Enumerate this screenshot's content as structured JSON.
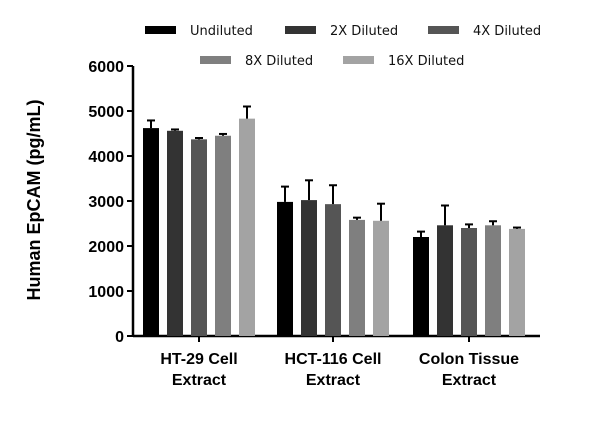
{
  "chart_data": {
    "type": "bar",
    "title": "",
    "ylabel": "Human EpCAM (pg/mL)",
    "xlabel": "",
    "ylim": [
      0,
      6000
    ],
    "yticks": [
      0,
      1000,
      2000,
      3000,
      4000,
      5000,
      6000
    ],
    "grid": false,
    "legend_position": "top",
    "categories": [
      [
        "HT-29 Cell",
        "Extract"
      ],
      [
        "HCT-116 Cell",
        "Extract"
      ],
      [
        "Colon Tissue",
        "Extract"
      ]
    ],
    "series": [
      {
        "name": "Undiluted",
        "color": "#000000",
        "values": [
          4620,
          2980,
          2200
        ],
        "errors": [
          170,
          340,
          120
        ]
      },
      {
        "name": "2X Diluted",
        "color": "#333333",
        "values": [
          4560,
          3020,
          2460
        ],
        "errors": [
          30,
          440,
          440
        ]
      },
      {
        "name": "4X Diluted",
        "color": "#555555",
        "values": [
          4370,
          2930,
          2400
        ],
        "errors": [
          30,
          420,
          80
        ]
      },
      {
        "name": "8X Diluted",
        "color": "#7f7f7f",
        "values": [
          4450,
          2580,
          2460
        ],
        "errors": [
          40,
          50,
          90
        ]
      },
      {
        "name": "16X Diluted",
        "color": "#a3a3a3",
        "values": [
          4830,
          2560,
          2380
        ],
        "errors": [
          270,
          380,
          30
        ]
      }
    ]
  }
}
